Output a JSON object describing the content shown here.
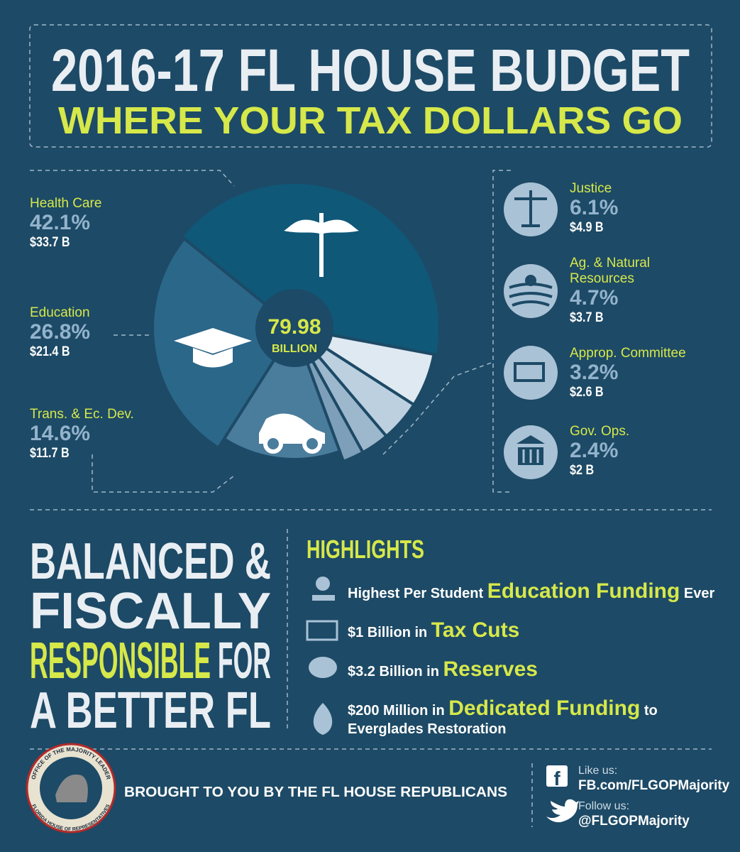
{
  "header": {
    "title": "2016-17 FL HOUSE BUDGET",
    "subtitle": "WHERE YOUR TAX DOLLARS GO"
  },
  "chart_data": {
    "type": "pie",
    "categories": [
      "Health Care",
      "Education",
      "Trans. & Ec. Dev.",
      "Justice",
      "Ag. & Natural Resources",
      "Approp. Committee",
      "Gov. Ops."
    ],
    "values": [
      42.1,
      26.8,
      14.6,
      6.1,
      4.7,
      3.2,
      2.4
    ],
    "value_labels": [
      "42.1%",
      "26.8%",
      "14.6%",
      "6.1%",
      "4.7%",
      "3.2%",
      "2.4%"
    ],
    "amount_labels": [
      "$33.7 B",
      "$21.4 B",
      "$11.7 B",
      "$4.9 B",
      "$3.7 B",
      "$2.6 B",
      "$2 B"
    ],
    "colors": [
      "#0f5878",
      "#2b6788",
      "#4a7c9c",
      "#dfe9f1",
      "#bcd0e0",
      "#9db8cd",
      "#7e9fb9"
    ],
    "total": 79.98,
    "total_unit": "BILLION"
  },
  "slogan": [
    [
      {
        "text": "BALANCED &"
      }
    ],
    [
      {
        "text": "FISCALLY"
      }
    ],
    [
      {
        "text": "RESPONSIBLE",
        "highlight": true
      },
      {
        "text": " FOR"
      }
    ],
    [
      {
        "text": "A BETTER FL"
      }
    ]
  ],
  "highlights": {
    "title": "HIGHLIGHTS",
    "items": [
      [
        [
          {
            "text": "Highest Per Student "
          },
          {
            "text": "Education Funding",
            "highlight": true
          },
          {
            "text": " Ever"
          }
        ]
      ],
      [
        [
          {
            "text": "$1 Billion in "
          },
          {
            "text": "Tax Cuts",
            "highlight": true
          }
        ]
      ],
      [
        [
          {
            "text": "$3.2 Billion in "
          },
          {
            "text": "Reserves",
            "highlight": true
          }
        ]
      ],
      [
        [
          {
            "text": "$200 Million in "
          },
          {
            "text": "Dedicated Funding",
            "highlight": true
          },
          {
            "text": " to"
          }
        ],
        [
          {
            "text": "Everglades Restoration"
          }
        ]
      ]
    ]
  },
  "footer": {
    "seal_top": "OFFICE OF THE MAJORITY LEADER",
    "seal_bottom": "FLORIDA HOUSE OF REPRESENTATIVES",
    "credit": "BROUGHT TO YOU BY THE FL HOUSE REPUBLICANS",
    "facebook_label": "Like us:",
    "facebook": "FB.com/FLGOPMajority",
    "twitter_label": "Follow us:",
    "twitter": "@FLGOPMajority"
  }
}
